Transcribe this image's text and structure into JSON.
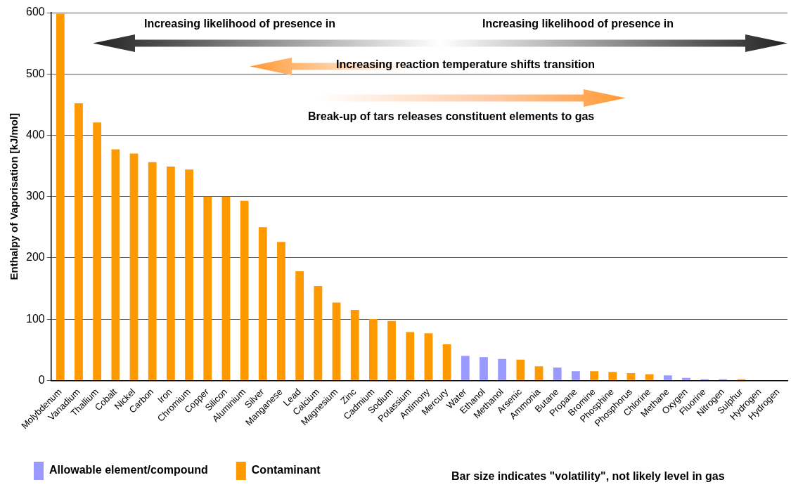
{
  "chart_data": {
    "type": "bar",
    "categories": [
      "Molybdenum",
      "Vanadium",
      "Thallium",
      "Cobalt",
      "Nickel",
      "Carbon",
      "Iron",
      "Chromium",
      "Copper",
      "Silicon",
      "Aluminium",
      "Silver",
      "Manganese",
      "Lead",
      "Calcium",
      "Magnesium",
      "Zinc",
      "Cadmium",
      "Sodium",
      "Potassium",
      "Antimony",
      "Mercury",
      "Water",
      "Ethanol",
      "Methanol",
      "Arsenic",
      "Ammonia",
      "Butane",
      "Propane",
      "Bromine",
      "Phosphine",
      "Phosphorus",
      "Chlorine",
      "Methane",
      "Oxygen",
      "Fluorine",
      "Nitrogen",
      "Sulphur",
      "Hydrogen",
      "Hydrogen"
    ],
    "series": [
      {
        "name": "Allowable element/compound",
        "color": "#9999ff",
        "values": [
          null,
          null,
          null,
          null,
          null,
          null,
          null,
          null,
          null,
          null,
          null,
          null,
          null,
          null,
          null,
          null,
          null,
          null,
          null,
          null,
          null,
          null,
          40,
          38,
          35,
          null,
          null,
          21,
          15,
          null,
          null,
          null,
          null,
          8,
          4,
          2,
          2,
          null,
          0,
          0
        ]
      },
      {
        "name": "Contaminant",
        "color": "#ff9900",
        "values": [
          598,
          452,
          421,
          377,
          370,
          356,
          349,
          344,
          300,
          300,
          293,
          250,
          226,
          178,
          154,
          127,
          115,
          100,
          97,
          79,
          77,
          59,
          null,
          null,
          null,
          34,
          23,
          null,
          null,
          15,
          14,
          12,
          10,
          null,
          null,
          null,
          null,
          2,
          null,
          null
        ]
      }
    ],
    "ylabel": "Enthalpy of Vaporisation [kJ/mol]",
    "ylim": [
      0,
      600
    ],
    "yticks": [
      0,
      100,
      200,
      300,
      400,
      500,
      600
    ],
    "grid": "y",
    "legend": "bottom left",
    "annotations": [
      "Increasing likelihood of presence in",
      "Increasing likelihood of presence in",
      "Increasing reaction temperature shifts transition",
      "Break-up of tars releases constituent elements to gas",
      "Bar size indicates \"volatility\", not likely level in gas"
    ]
  }
}
